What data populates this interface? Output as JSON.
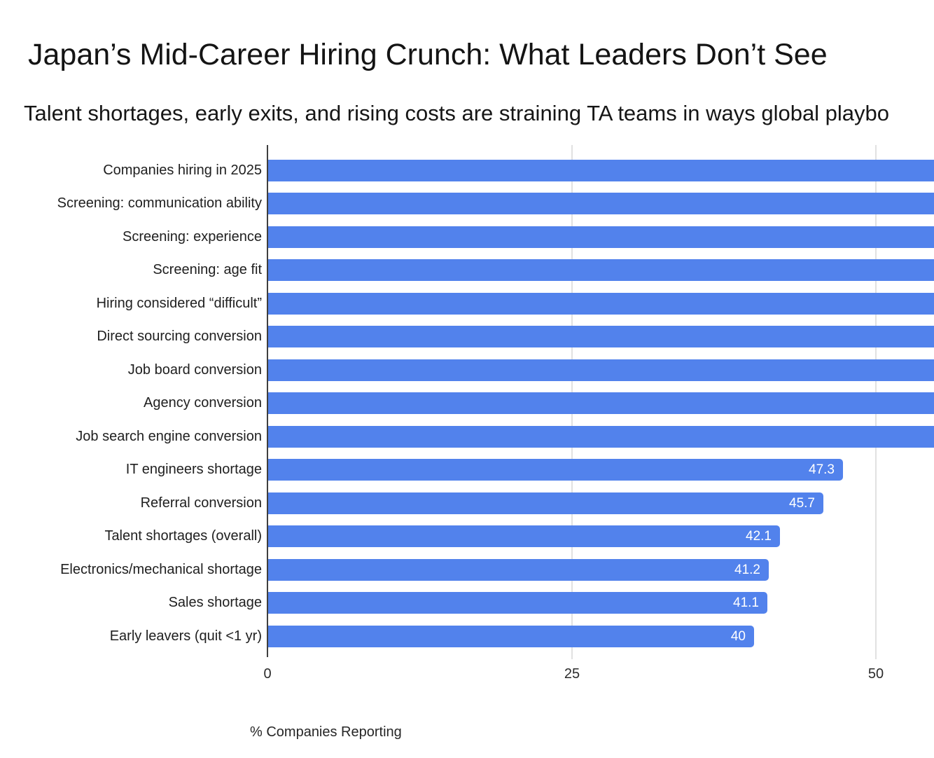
{
  "chart_data": {
    "type": "bar",
    "orientation": "horizontal",
    "title": "Japan’s Mid-Career Hiring Crunch: What Leaders Don’t See",
    "subtitle": "Talent shortages, early exits, and rising costs are straining TA teams in ways global playbo",
    "xlabel": "% Companies Reporting",
    "x_ticks": [
      0,
      25,
      50
    ],
    "x_tick_labels": [
      "0",
      "25",
      "50"
    ],
    "visible_x_range": [
      0,
      54.7
    ],
    "grid": true,
    "legend": "none",
    "colors": {
      "bar": "#5282ec",
      "value_label": "#ffffff",
      "gridline": "#e1e1e1",
      "axis_line": "#3f3f3f",
      "label_text": "#202020"
    },
    "bars": [
      {
        "category": "Companies hiring in 2025",
        "value": null,
        "display_label": "",
        "clipped_at_right_edge": true
      },
      {
        "category": "Screening: communication ability",
        "value": null,
        "display_label": "",
        "clipped_at_right_edge": true
      },
      {
        "category": "Screening: experience",
        "value": null,
        "display_label": "",
        "clipped_at_right_edge": true
      },
      {
        "category": "Screening: age fit",
        "value": null,
        "display_label": "",
        "clipped_at_right_edge": true
      },
      {
        "category": "Hiring considered “difficult”",
        "value": null,
        "display_label": "",
        "clipped_at_right_edge": true
      },
      {
        "category": "Direct sourcing conversion",
        "value": null,
        "display_label": "",
        "clipped_at_right_edge": true
      },
      {
        "category": "Job board conversion",
        "value": null,
        "display_label": "",
        "clipped_at_right_edge": true
      },
      {
        "category": "Agency conversion",
        "value": null,
        "display_label": "",
        "clipped_at_right_edge": true
      },
      {
        "category": "Job search engine conversion",
        "value": null,
        "display_label": "",
        "clipped_at_right_edge": true
      },
      {
        "category": "IT engineers shortage",
        "value": 47.3,
        "display_label": "47.3",
        "clipped_at_right_edge": false
      },
      {
        "category": "Referral conversion",
        "value": 45.7,
        "display_label": "45.7",
        "clipped_at_right_edge": false
      },
      {
        "category": "Talent shortages (overall)",
        "value": 42.1,
        "display_label": "42.1",
        "clipped_at_right_edge": false
      },
      {
        "category": "Electronics/mechanical shortage",
        "value": 41.2,
        "display_label": "41.2",
        "clipped_at_right_edge": false
      },
      {
        "category": "Sales shortage",
        "value": 41.1,
        "display_label": "41.1",
        "clipped_at_right_edge": false
      },
      {
        "category": "Early leavers (quit <1 yr)",
        "value": 40,
        "display_label": "40",
        "clipped_at_right_edge": false
      }
    ]
  }
}
